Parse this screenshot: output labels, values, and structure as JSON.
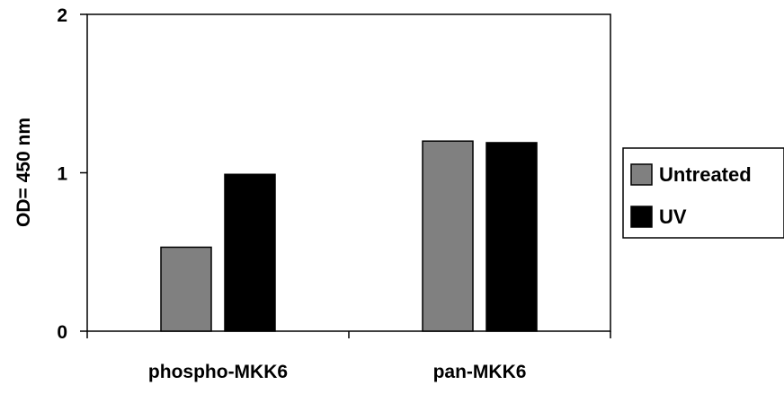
{
  "chart_data": {
    "type": "bar",
    "categories": [
      "phospho-MKK6",
      "pan-MKK6"
    ],
    "series": [
      {
        "name": "Untreated",
        "values": [
          0.53,
          1.2
        ],
        "color": "#808080"
      },
      {
        "name": "UV",
        "values": [
          0.99,
          1.19
        ],
        "color": "#000000"
      }
    ],
    "ylabel": "OD= 450 nm",
    "xlabel": "",
    "ylim": [
      0,
      2
    ],
    "yticks": [
      0,
      1,
      2
    ],
    "grid": false,
    "legend_position": "right"
  }
}
